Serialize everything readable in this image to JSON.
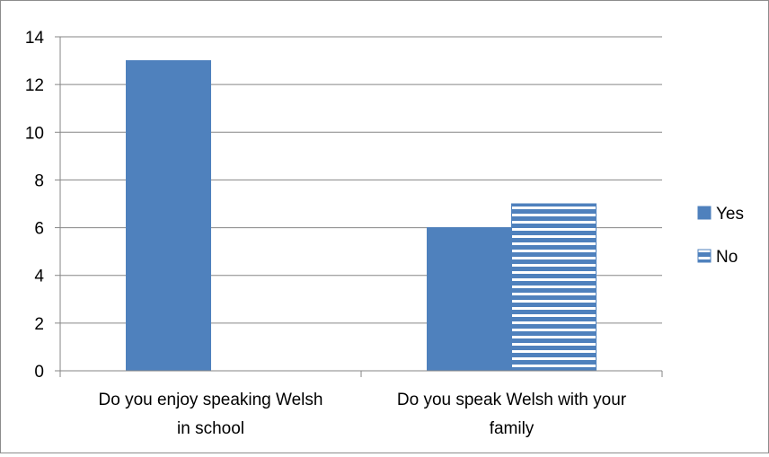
{
  "chart_data": {
    "type": "bar",
    "categories": [
      [
        "Do you enjoy speaking Welsh",
        "in school"
      ],
      [
        "Do you speak Welsh with your",
        "family"
      ]
    ],
    "series": [
      {
        "name": "Yes",
        "values": [
          13,
          6
        ],
        "color": "#4f81bd",
        "pattern": "solid"
      },
      {
        "name": "No",
        "values": [
          0,
          7
        ],
        "color": "#4f81bd",
        "pattern": "horizontal-stripes"
      }
    ],
    "ylim": [
      0,
      14
    ],
    "yticks": [
      0,
      2,
      4,
      6,
      8,
      10,
      12,
      14
    ],
    "grid": true,
    "legend": "right"
  }
}
